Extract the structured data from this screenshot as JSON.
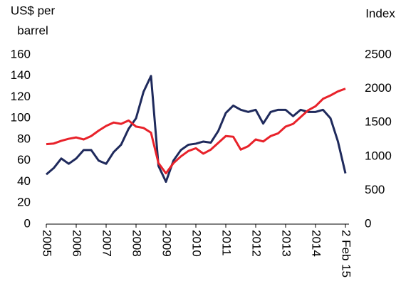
{
  "chart_data": {
    "type": "line",
    "ylabel": [
      "US$ per",
      "barrel"
    ],
    "y2label": "Index",
    "categories": [
      "2005",
      null,
      null,
      null,
      "2006",
      null,
      null,
      null,
      "2007",
      null,
      null,
      null,
      "2008",
      null,
      null,
      null,
      "2009",
      null,
      null,
      null,
      "2010",
      null,
      null,
      null,
      "2011",
      null,
      null,
      null,
      "2012",
      null,
      null,
      null,
      "2013",
      null,
      null,
      null,
      "2014",
      null,
      null,
      null,
      "2 Feb 15"
    ],
    "series": [
      {
        "color": "#1f2a5c",
        "axis": "y",
        "values": [
          47,
          53,
          62,
          57,
          62,
          70,
          70,
          60,
          57,
          68,
          75,
          90,
          100,
          125,
          140,
          55,
          40,
          60,
          70,
          75,
          76,
          78,
          77,
          88,
          105,
          112,
          108,
          106,
          108,
          95,
          106,
          108,
          108,
          102,
          108,
          106,
          106,
          108,
          100,
          78,
          48
        ]
      },
      {
        "color": "#e8222a",
        "axis": "y2",
        "values": [
          1180,
          1190,
          1230,
          1260,
          1280,
          1250,
          1300,
          1380,
          1450,
          1500,
          1480,
          1530,
          1440,
          1420,
          1350,
          900,
          750,
          900,
          1000,
          1080,
          1120,
          1040,
          1100,
          1200,
          1300,
          1290,
          1100,
          1150,
          1250,
          1220,
          1300,
          1340,
          1440,
          1480,
          1580,
          1680,
          1740,
          1850,
          1900,
          1960,
          2000
        ]
      }
    ],
    "ylim": [
      0,
      160
    ],
    "yticks": [
      0,
      20,
      40,
      60,
      80,
      100,
      120,
      140,
      160
    ],
    "y2lim": [
      0,
      2500
    ],
    "y2ticks": [
      0,
      500,
      1000,
      1500,
      2000,
      2500
    ]
  }
}
